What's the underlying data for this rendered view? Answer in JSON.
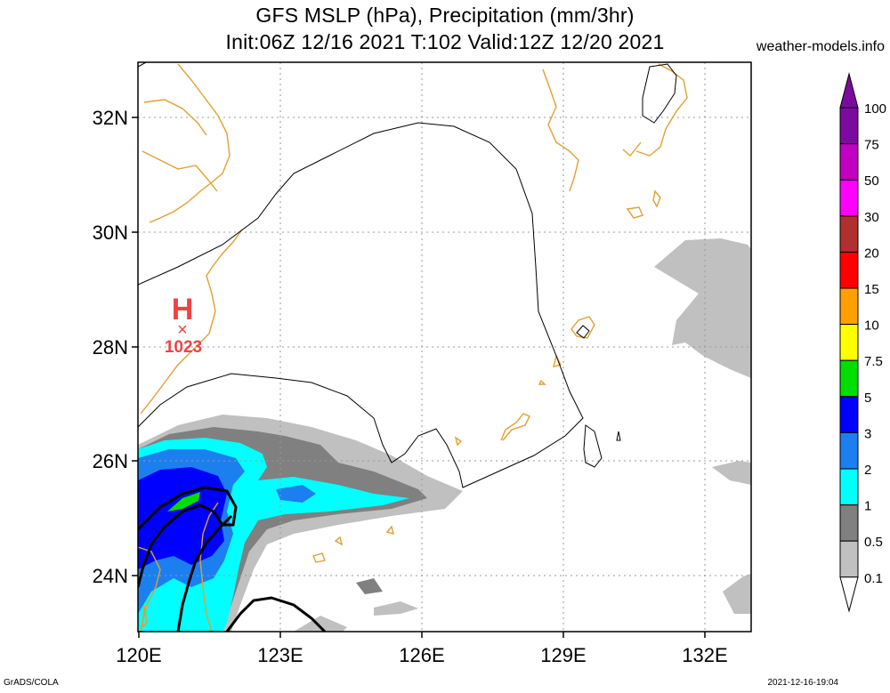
{
  "header": {
    "title_line1": "GFS MSLP (hPa), Precipitation (mm/3hr)",
    "title_line2": "Init:06Z 12/16 2021 T:102 Valid:12Z 12/20 2021",
    "site": "weather-models.info"
  },
  "map": {
    "lat_labels": [
      "32N",
      "30N",
      "28N",
      "26N",
      "24N"
    ],
    "lon_labels": [
      "120E",
      "123E",
      "126E",
      "129E",
      "132E"
    ],
    "high_marker": {
      "letter": "H",
      "symbol": "×",
      "value": "1023"
    }
  },
  "legend": {
    "levels": [
      "100",
      "75",
      "50",
      "30",
      "20",
      "15",
      "10",
      "7.5",
      "5",
      "3",
      "2",
      "1",
      "0.5",
      "0.1"
    ],
    "colors": [
      "#7c0a9e",
      "#c100c1",
      "#ff00ff",
      "#b03030",
      "#ff0000",
      "#ff9f00",
      "#ffff00",
      "#00dd00",
      "#0000ff",
      "#1c7ff0",
      "#00ffff",
      "#808080",
      "#c0c0c0",
      "#ffffff"
    ]
  },
  "footer": {
    "left": "GrADS/COLA",
    "right": "2021-12-16-19:04"
  }
}
